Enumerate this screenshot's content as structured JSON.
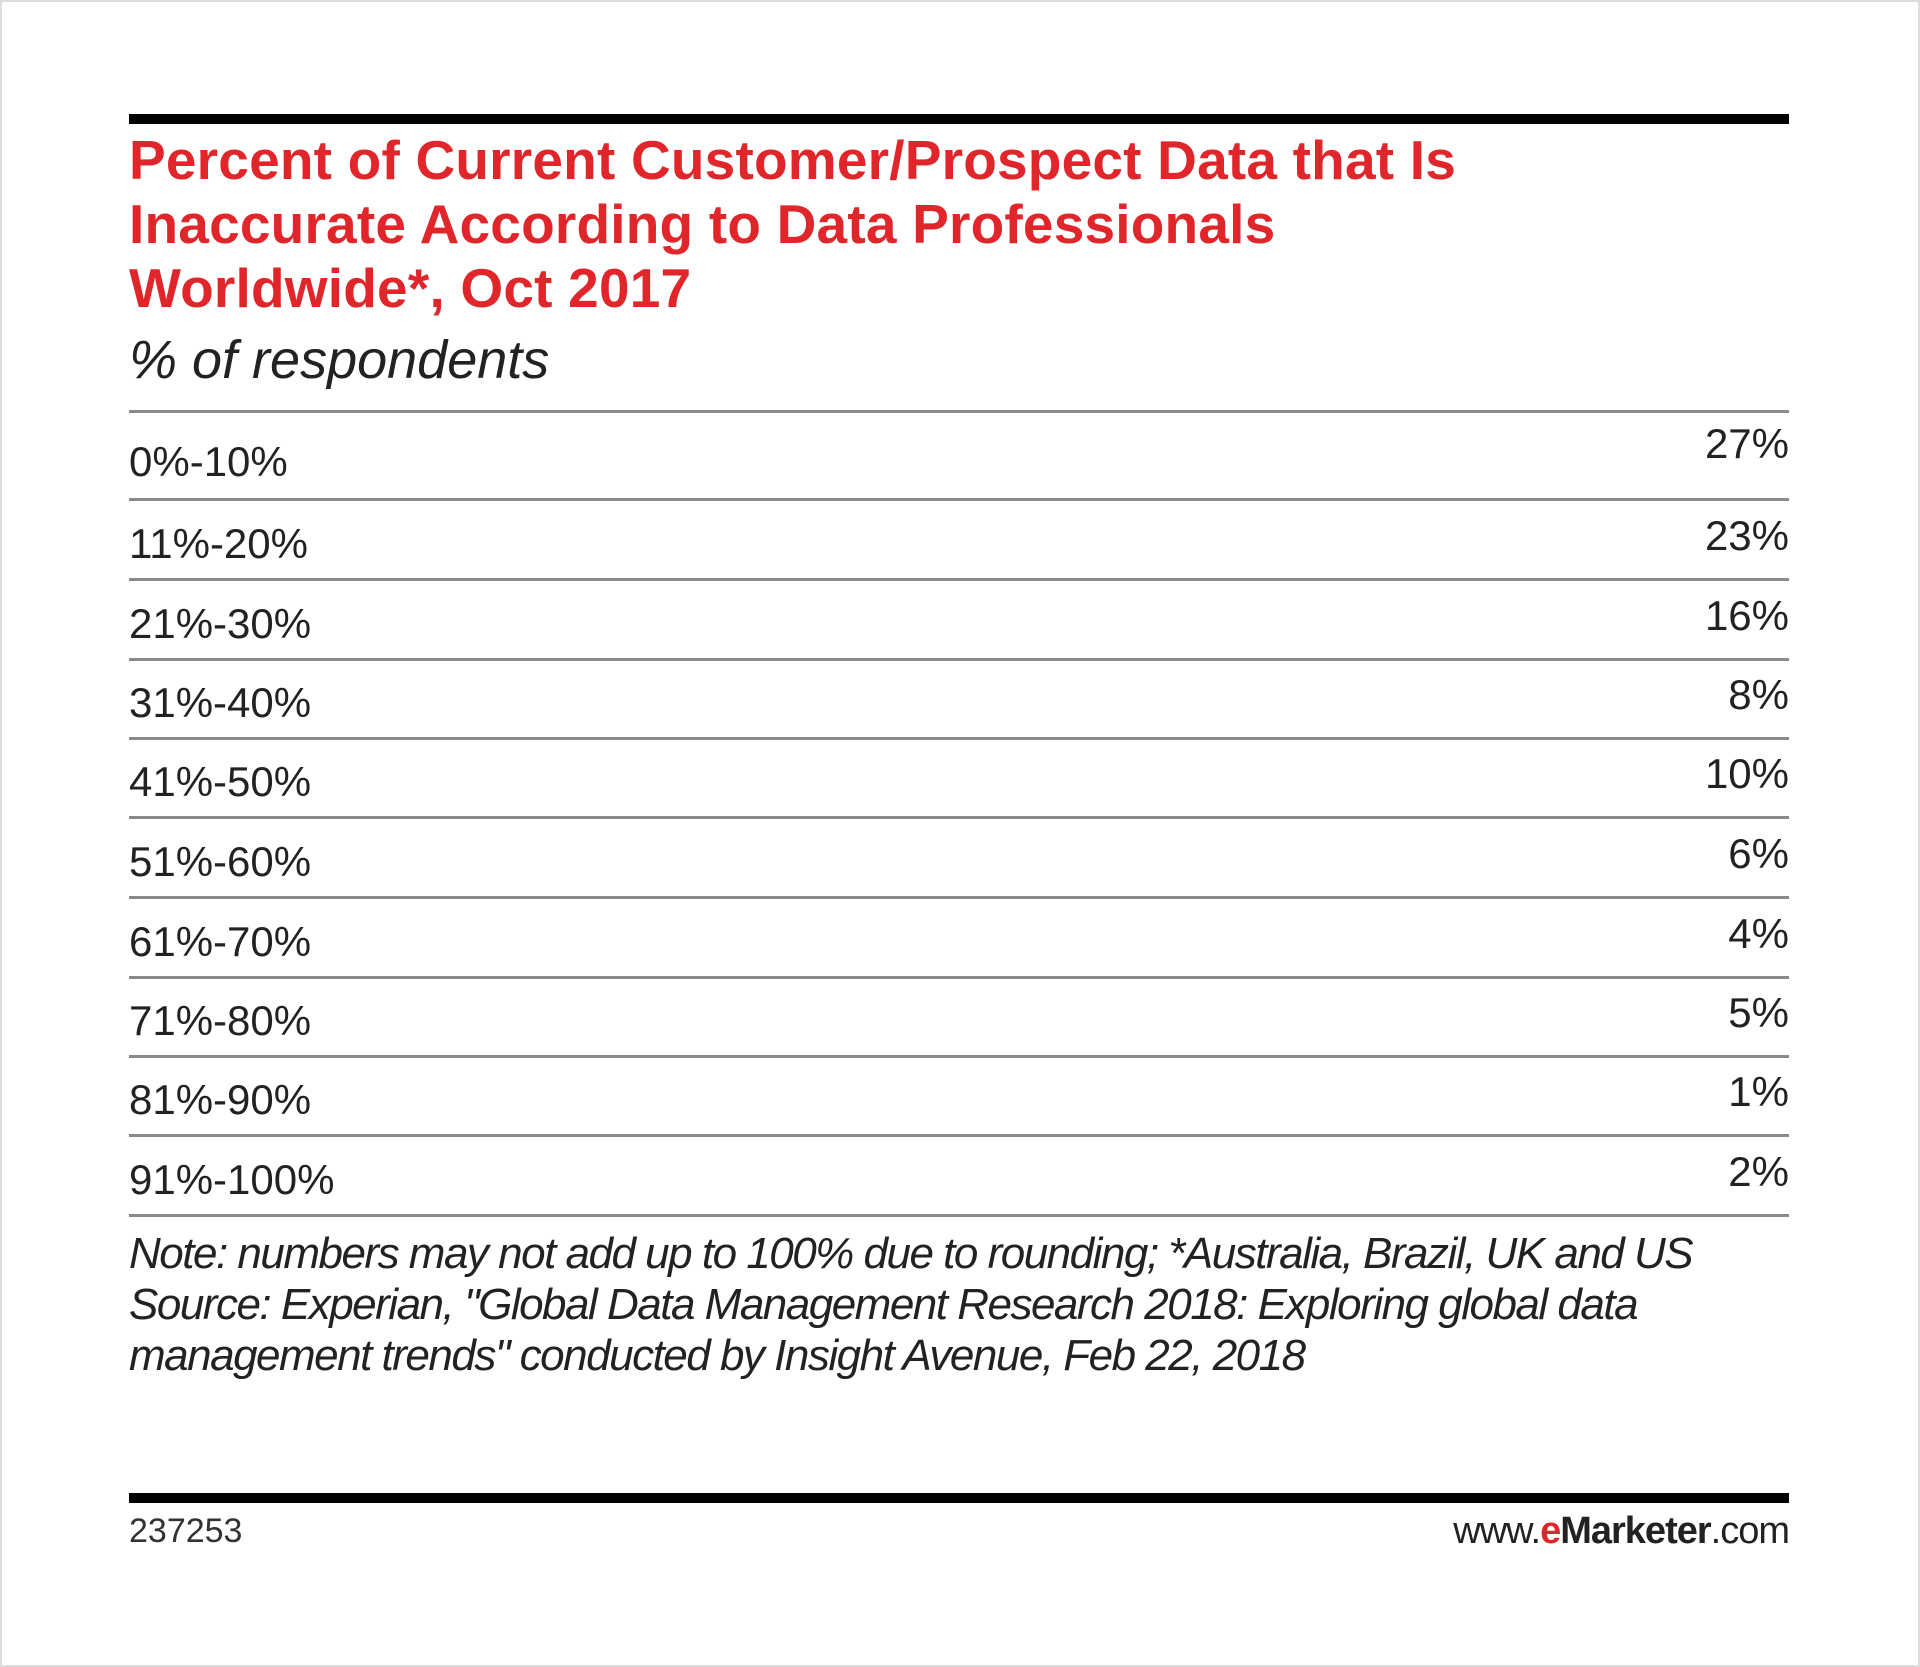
{
  "chart_data": {
    "type": "table",
    "title": "Percent of Current Customer/Prospect Data that Is Inaccurate According to Data Professionals Worldwide*, Oct 2017",
    "title_lines": [
      "Percent of Current Customer/Prospect Data that Is",
      "Inaccurate According to Data Professionals",
      "Worldwide*, Oct 2017"
    ],
    "subtitle": "% of respondents",
    "categories": [
      "0%-10%",
      "11%-20%",
      "21%-30%",
      "31%-40%",
      "41%-50%",
      "51%-60%",
      "61%-70%",
      "71%-80%",
      "81%-90%",
      "91%-100%"
    ],
    "values": [
      27,
      23,
      16,
      8,
      10,
      6,
      4,
      5,
      1,
      2
    ],
    "value_labels": [
      "27%",
      "23%",
      "16%",
      "8%",
      "10%",
      "6%",
      "4%",
      "5%",
      "1%",
      "2%"
    ],
    "unit": "%"
  },
  "note": "Note: numbers may not add up to 100% due to rounding; *Australia, Brazil, UK and US",
  "source": "Source: Experian, \"Global Data Management Research 2018: Exploring global data management trends\" conducted by Insight Avenue, Feb 22, 2018",
  "footer": {
    "chart_id": "237253",
    "brand_prefix": "www.",
    "brand_e": "e",
    "brand_name": "Marketer",
    "brand_suffix": ".com"
  },
  "colors": {
    "title": "#e0262b",
    "rules": "#000000",
    "text": "#222222"
  }
}
